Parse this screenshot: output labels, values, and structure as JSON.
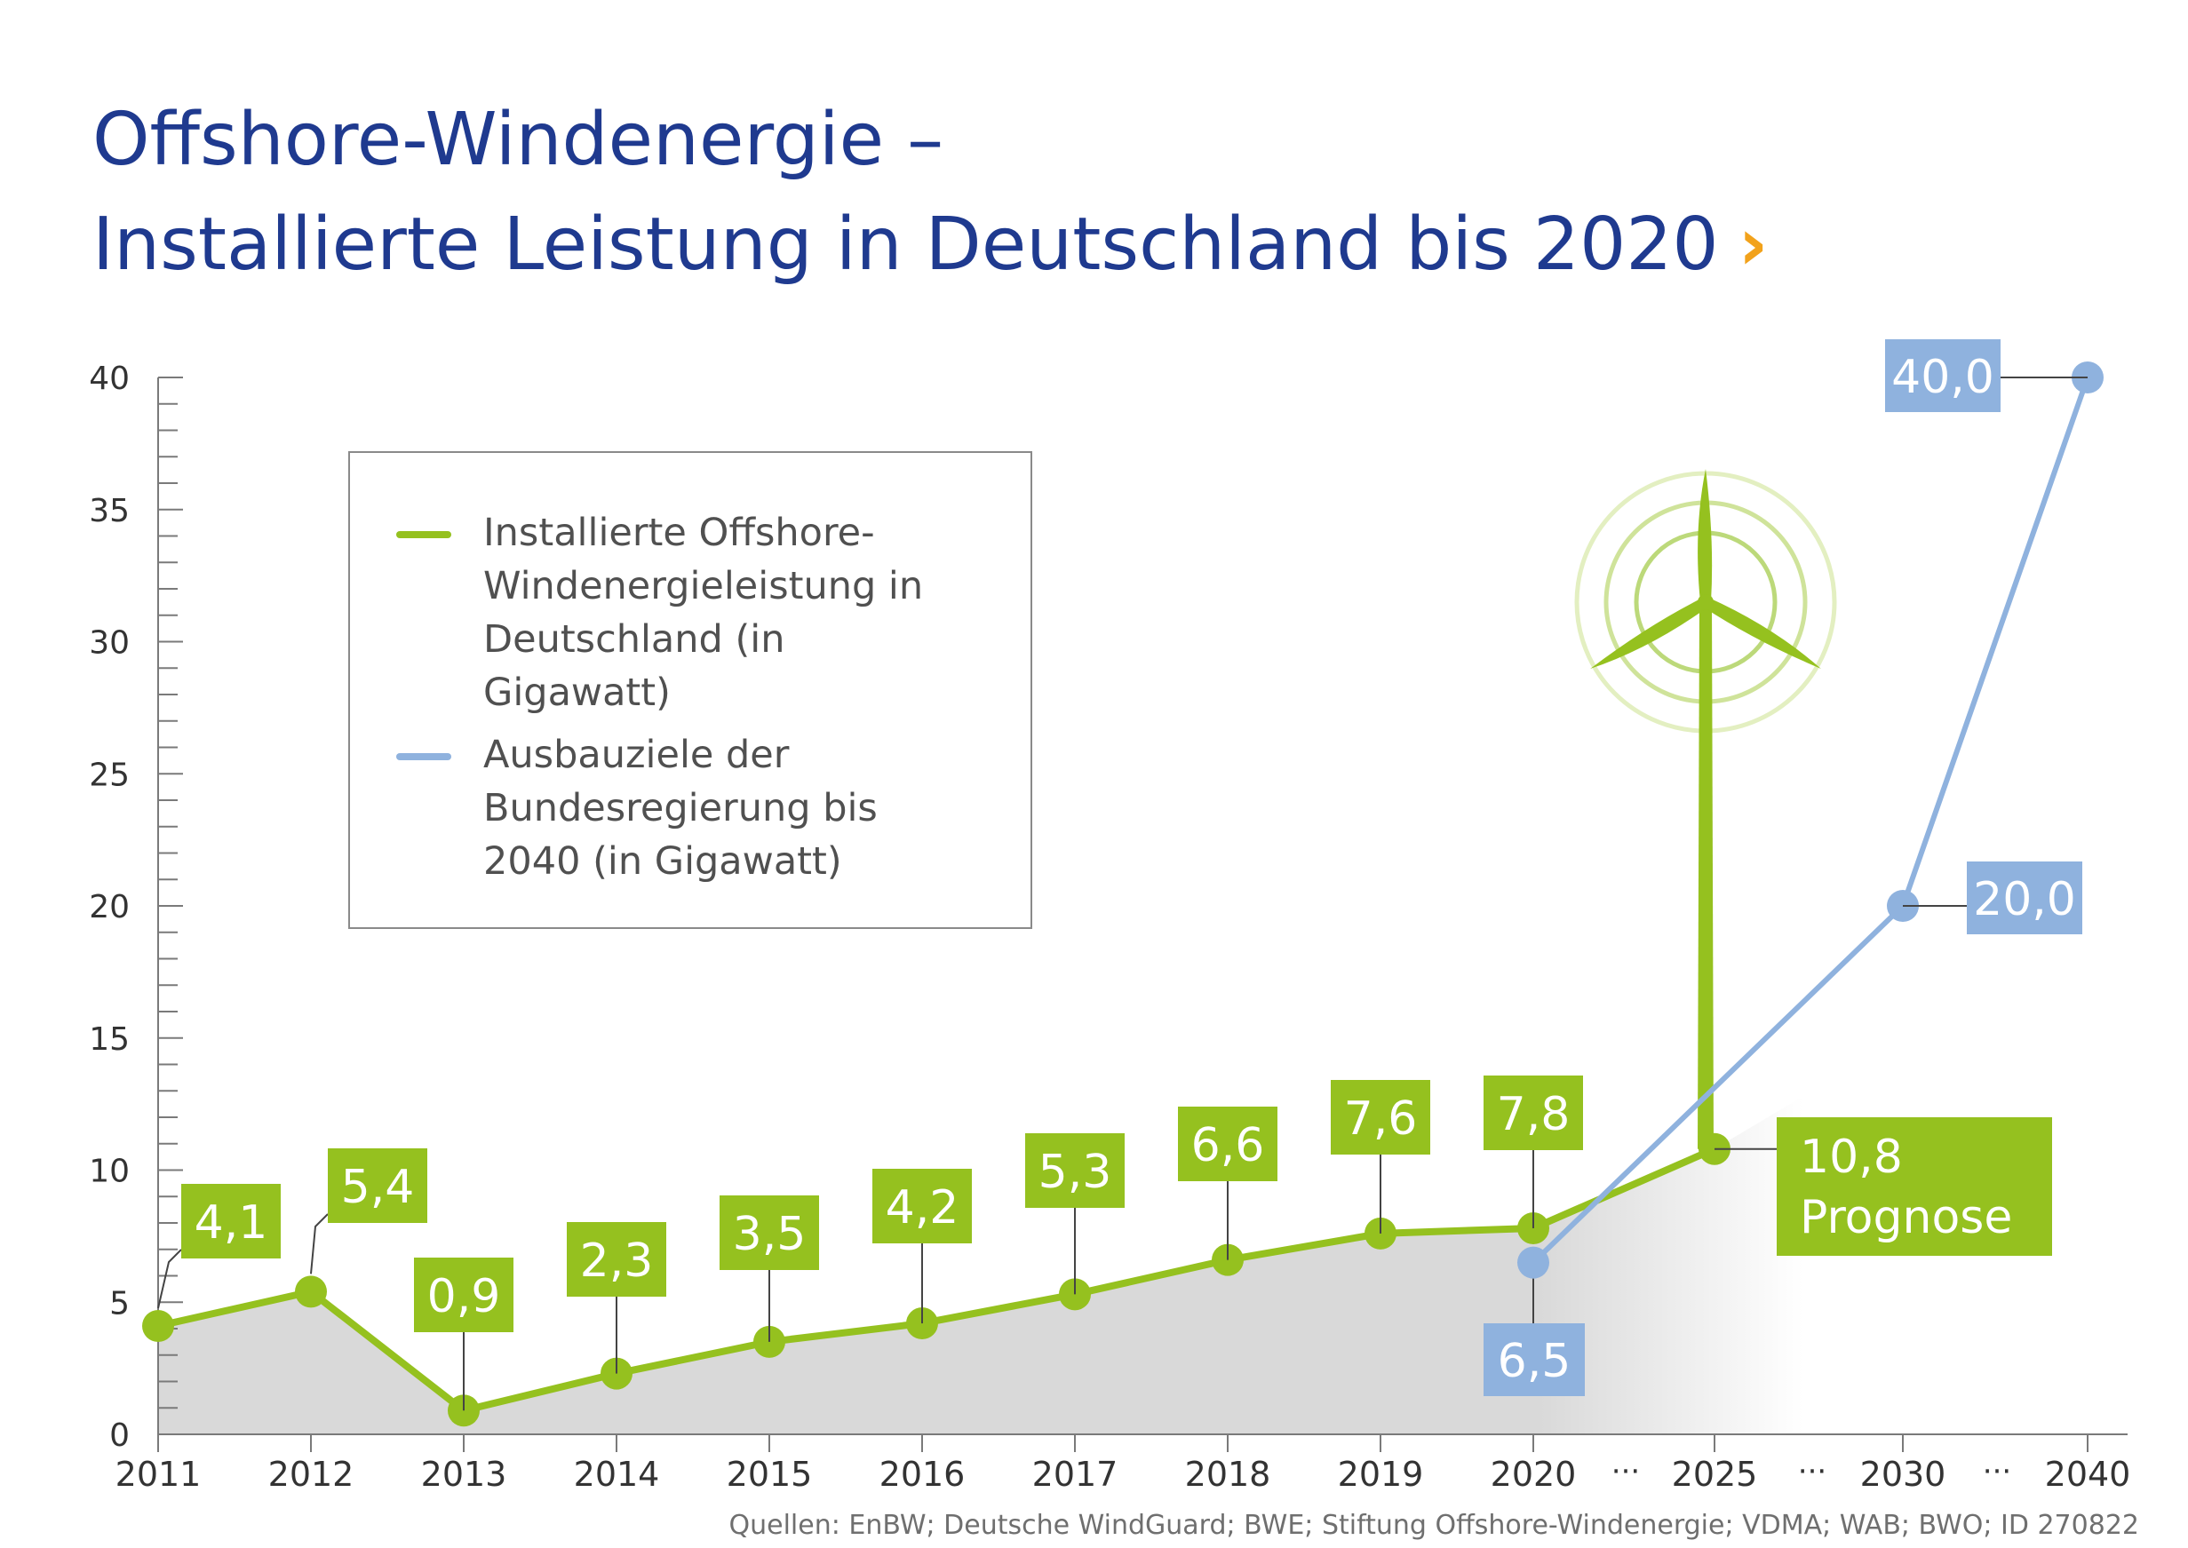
{
  "title_line1": "Offshore-Windenergie –",
  "title_line2": "Installierte Leistung in Deutschland bis 2020",
  "title_chevron": "›",
  "source": "Quellen: EnBW; Deutsche WindGuard; BWE; Stiftung Offshore-Windenergie; VDMA; WAB; BWO; ID 270822",
  "colors": {
    "green": "#95c11f",
    "blue": "#8fb2de",
    "title": "#1f3a8f",
    "accent": "#f2a21b",
    "area": "#d9d9d9"
  },
  "legend": {
    "green_label": "Installierte Offshore-Windenergieleistung in Deutschland (in Gigawatt)",
    "blue_label": "Ausbauziele der Bundesregierung bis 2040 (in Gigawatt)"
  },
  "chart_data": {
    "type": "line",
    "ylim": [
      0,
      40
    ],
    "yticks": [
      "0",
      "5",
      "10",
      "15",
      "20",
      "25",
      "30",
      "35",
      "40"
    ],
    "categories": [
      "2011",
      "2012",
      "2013",
      "2014",
      "2015",
      "2016",
      "2017",
      "2018",
      "2019",
      "2020",
      "2025",
      "2030",
      "2040"
    ],
    "ellipsis": "···",
    "series": [
      {
        "name": "Installierte Offshore-Windenergieleistung in Deutschland (in Gigawatt)",
        "color": "#95c11f",
        "x": [
          "2011",
          "2012",
          "2013",
          "2014",
          "2015",
          "2016",
          "2017",
          "2018",
          "2019",
          "2020",
          "2025"
        ],
        "values": [
          4.1,
          5.4,
          0.9,
          2.3,
          3.5,
          4.2,
          5.3,
          6.6,
          7.6,
          7.8,
          10.8
        ],
        "labels": [
          "4,1",
          "5,4",
          "0,9",
          "2,3",
          "3,5",
          "4,2",
          "5,3",
          "6,6",
          "7,6",
          "7,8",
          "10,8"
        ],
        "last_label_note": "Prognose"
      },
      {
        "name": "Ausbauziele der Bundesregierung bis 2040 (in Gigawatt)",
        "color": "#8fb2de",
        "x": [
          "2020",
          "2030",
          "2040"
        ],
        "values": [
          6.5,
          20.0,
          40.0
        ],
        "labels": [
          "6,5",
          "20,0",
          "40,0"
        ]
      }
    ]
  }
}
